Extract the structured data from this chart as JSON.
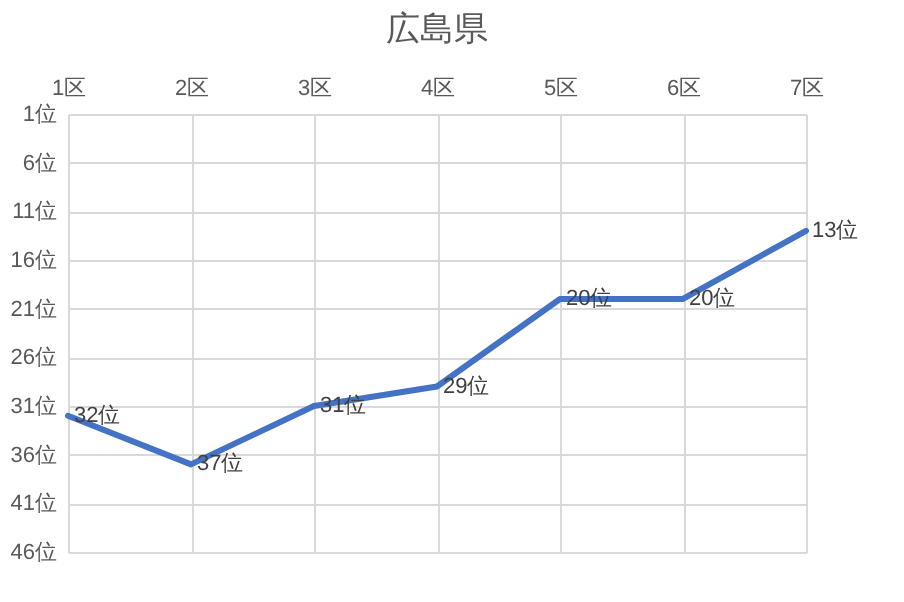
{
  "chart_data": {
    "type": "line",
    "title": "広島県",
    "categories": [
      "1区",
      "2区",
      "3区",
      "4区",
      "5区",
      "6区",
      "7区"
    ],
    "series": [
      {
        "color": "#4472c4",
        "values": [
          32,
          37,
          31,
          29,
          20,
          20,
          13
        ],
        "value_labels": [
          "32位",
          "37位",
          "31位",
          "29位",
          "20位",
          "20位",
          "13位"
        ]
      }
    ],
    "ylim": [
      46,
      1
    ],
    "yticks": [
      {
        "value": 1,
        "label": "1位"
      },
      {
        "value": 6,
        "label": "6位"
      },
      {
        "value": 11,
        "label": "11位"
      },
      {
        "value": 16,
        "label": "16位"
      },
      {
        "value": 21,
        "label": "21位"
      },
      {
        "value": 26,
        "label": "26位"
      },
      {
        "value": 31,
        "label": "31位"
      },
      {
        "value": 36,
        "label": "36位"
      },
      {
        "value": 41,
        "label": "41位"
      },
      {
        "value": 46,
        "label": "46位"
      }
    ],
    "grid": true
  }
}
